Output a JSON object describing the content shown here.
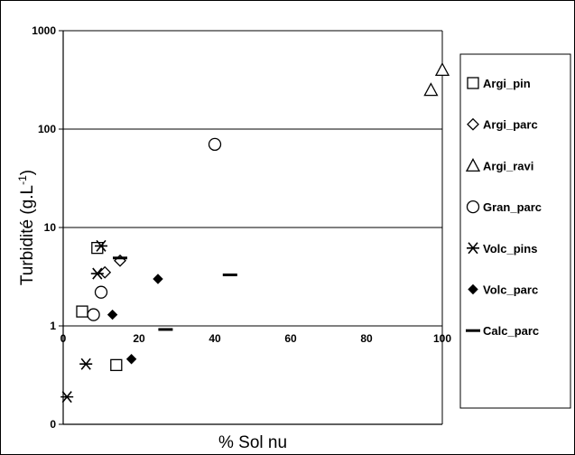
{
  "chart_data": {
    "type": "scatter",
    "title": "",
    "xlabel": "% Sol nu",
    "ylabel": "Turbidité (g.L",
    "ylabel_sup": "-1",
    "ylabel_tail": ")",
    "xlim": [
      0,
      100
    ],
    "ylim": [
      0.1,
      1000
    ],
    "y_scale": "log",
    "x_ticks": [
      0,
      20,
      40,
      60,
      80,
      100
    ],
    "y_ticks": [
      {
        "value": 1000,
        "label": "1000"
      },
      {
        "value": 100,
        "label": "100"
      },
      {
        "value": 10,
        "label": "10"
      },
      {
        "value": 1,
        "label": "1"
      },
      {
        "value": 0.1,
        "label": "0"
      }
    ],
    "grid": "horizontal",
    "legend_position": "right",
    "series": [
      {
        "name": "Argi_pin",
        "marker": "square",
        "points": [
          [
            5,
            1.4
          ],
          [
            9,
            6.2
          ],
          [
            14,
            0.4
          ]
        ]
      },
      {
        "name": "Argi_parc",
        "marker": "diamond",
        "points": [
          [
            11,
            3.5
          ],
          [
            15,
            4.6
          ]
        ]
      },
      {
        "name": "Argi_ravi",
        "marker": "triangle",
        "points": [
          [
            97,
            250
          ],
          [
            100,
            400
          ]
        ]
      },
      {
        "name": "Gran_parc",
        "marker": "circle",
        "points": [
          [
            8,
            1.3
          ],
          [
            10,
            2.2
          ],
          [
            40,
            70
          ]
        ]
      },
      {
        "name": "Volc_pins",
        "marker": "star",
        "points": [
          [
            1,
            0.19
          ],
          [
            6,
            0.41
          ],
          [
            9,
            3.4
          ],
          [
            10,
            6.5
          ]
        ]
      },
      {
        "name": "Volc_parc",
        "marker": "filled-diamond",
        "points": [
          [
            13,
            1.3
          ],
          [
            18,
            0.46
          ],
          [
            25,
            3.0
          ]
        ]
      },
      {
        "name": "Calc_parc",
        "marker": "dash",
        "points": [
          [
            15,
            4.9
          ],
          [
            27,
            0.92
          ],
          [
            44,
            3.3
          ]
        ]
      }
    ]
  }
}
